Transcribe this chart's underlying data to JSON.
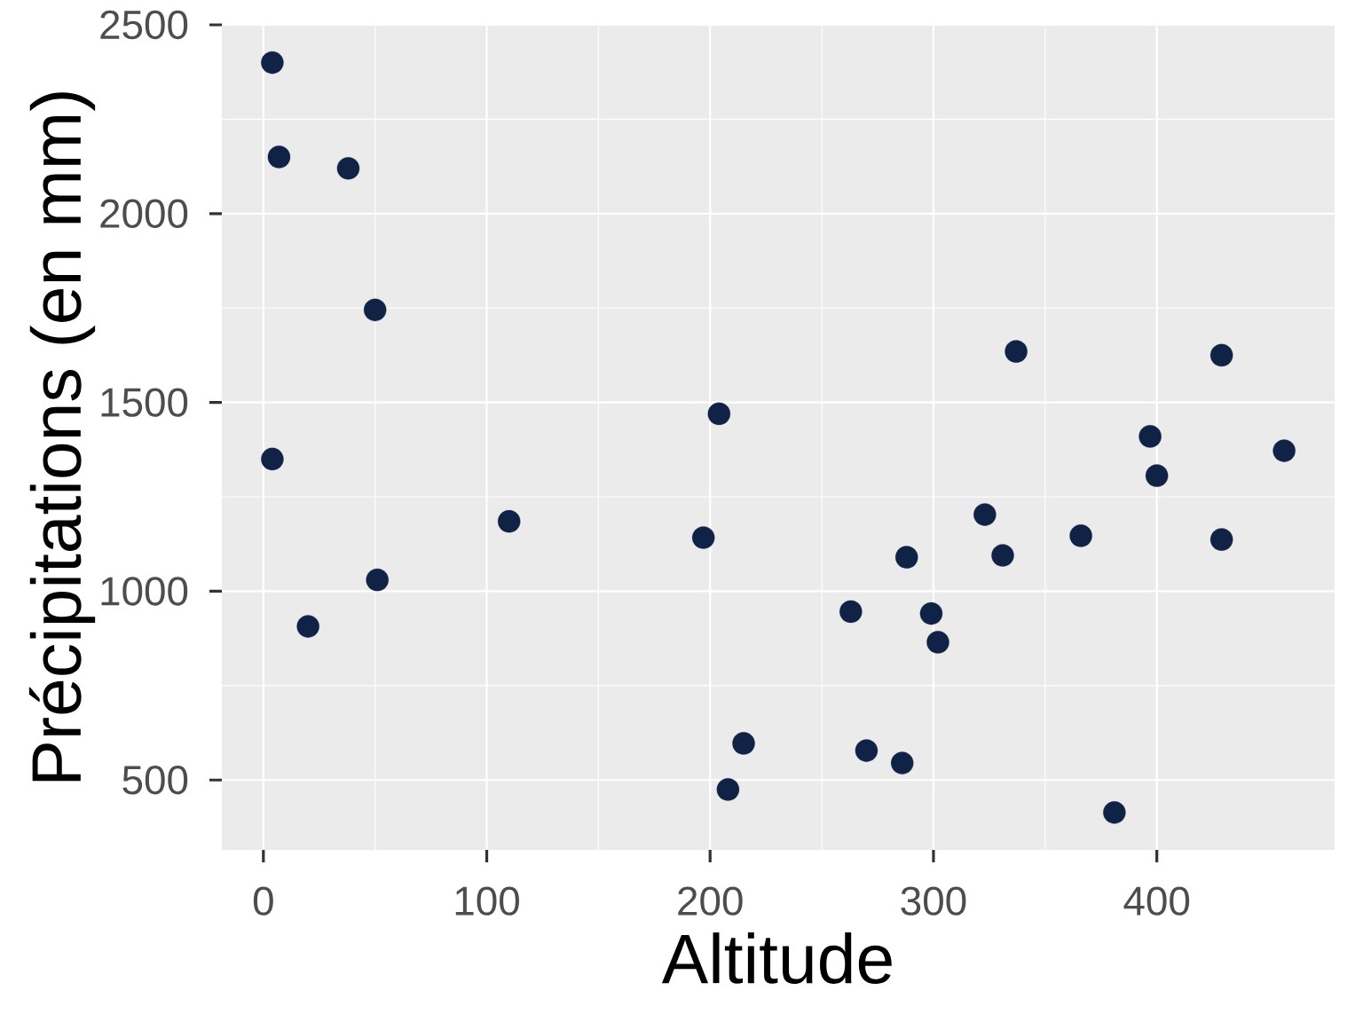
{
  "chart_data": {
    "type": "scatter",
    "xlabel": "Altitude",
    "ylabel": "Précipitations (en mm)",
    "x": [
      4,
      7,
      38,
      50,
      4,
      20,
      51,
      110,
      197,
      204,
      208,
      215,
      263,
      270,
      286,
      288,
      299,
      302,
      323,
      331,
      337,
      366,
      381,
      397,
      400,
      429,
      429,
      457
    ],
    "values": [
      2400,
      2150,
      2120,
      1745,
      1350,
      907,
      1030,
      1185,
      1142,
      1470,
      475,
      597,
      946,
      578,
      545,
      1090,
      941,
      865,
      1203,
      1095,
      1635,
      1147,
      414,
      1410,
      1306,
      1625,
      1137,
      1372
    ],
    "color": "#112247",
    "xlim": [
      -18.6,
      479.6
    ],
    "ylim": [
      315,
      2500
    ],
    "xticks": [
      0,
      100,
      200,
      300,
      400
    ],
    "yticks": [
      500,
      1000,
      1500,
      2000,
      2500
    ],
    "grid": true,
    "marker": "circle"
  }
}
